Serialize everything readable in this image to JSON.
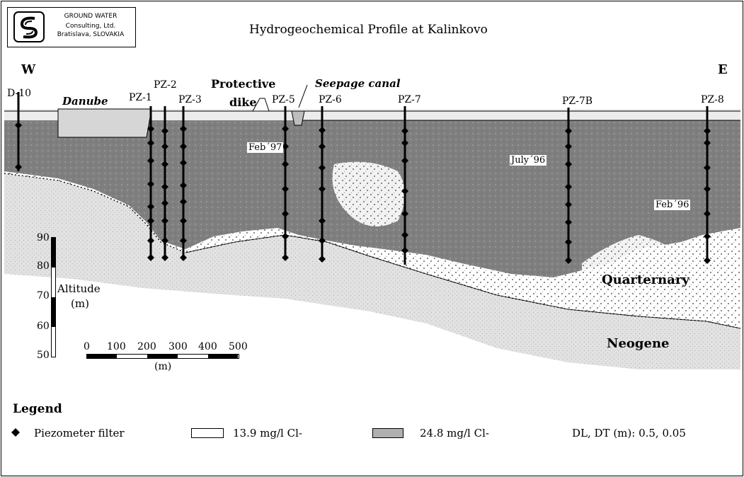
{
  "logo": {
    "lines": [
      "GROUND WATER",
      "Consulting, Ltd.",
      "Bratislava, SLOVAKIA"
    ],
    "icon": "stylized-s-icon"
  },
  "title": "Hydrogeochemical Profile at Kalinkovo",
  "directions": {
    "west": "W",
    "east": "E"
  },
  "features": {
    "danube": "Danube",
    "protective": "Protective",
    "dike": "dike",
    "seepage_canal": "Seepage canal",
    "quarternary": "Quarternary",
    "neogene": "Neogene"
  },
  "wells": [
    {
      "id": "D-10",
      "label": "D-10"
    },
    {
      "id": "PZ-1",
      "label": "PZ-1"
    },
    {
      "id": "PZ-2",
      "label": "PZ-2"
    },
    {
      "id": "PZ-3",
      "label": "PZ-3"
    },
    {
      "id": "PZ-5",
      "label": "PZ-5"
    },
    {
      "id": "PZ-6",
      "label": "PZ-6"
    },
    {
      "id": "PZ-7",
      "label": "PZ-7"
    },
    {
      "id": "PZ-7B",
      "label": "PZ-7B"
    },
    {
      "id": "PZ-8",
      "label": "PZ-8"
    }
  ],
  "dates": {
    "feb97": "Feb´97",
    "july96": "July´96",
    "feb96": "Feb´96"
  },
  "altitude_scale": {
    "label_line1": "Altitude",
    "label_line2": "(m)",
    "ticks": [
      "90",
      "80",
      "70",
      "60",
      "50"
    ]
  },
  "distance_scale": {
    "ticks": [
      "0",
      "100",
      "200",
      "300",
      "400",
      "500"
    ],
    "unit": "(m)"
  },
  "legend": {
    "title": "Legend",
    "piezometer": "Piezometer filter",
    "low_conc": "13.9 mg/l  Cl-",
    "high_conc": "24.8 mg/l  Cl-",
    "dispersivity": "DL, DT (m): 0.5, 0.05"
  },
  "colors": {
    "plume": "#7f7f7f",
    "sediment": "#e2e2e2",
    "sediment_dots": "#b8b8b8",
    "river": "#d6d6d6"
  }
}
